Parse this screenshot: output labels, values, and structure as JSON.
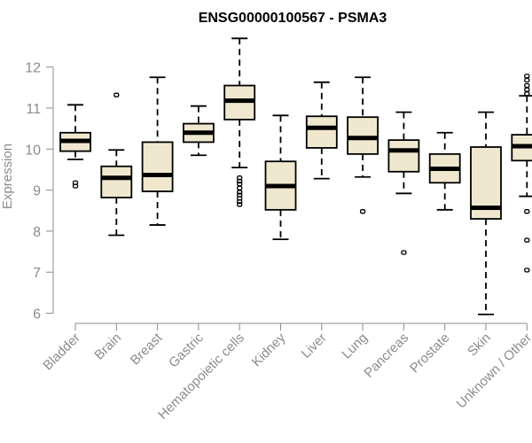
{
  "chart_data": {
    "type": "boxplot",
    "title": "ENSG00000100567 - PSMA3",
    "xlabel": "",
    "ylabel": "Expression",
    "ylim": [
      6,
      12.5
    ],
    "yticks": [
      6,
      7,
      8,
      9,
      10,
      11,
      12
    ],
    "grid": false,
    "box_color": "#efe8cf",
    "categories": [
      "Bladder",
      "Brain",
      "Breast",
      "Gastric",
      "Hematopoietic cells",
      "Kidney",
      "Liver",
      "Lung",
      "Pancreas",
      "Prostate",
      "Skin",
      "Unknown / Other"
    ],
    "boxes": [
      {
        "label": "Bladder",
        "min": 9.75,
        "q1": 9.95,
        "median": 10.2,
        "q3": 10.4,
        "max": 11.08,
        "outliers": [
          9.1,
          9.18
        ]
      },
      {
        "label": "Brain",
        "min": 7.9,
        "q1": 8.82,
        "median": 9.3,
        "q3": 9.58,
        "max": 9.98,
        "outliers": [
          11.32
        ]
      },
      {
        "label": "Breast",
        "min": 8.15,
        "q1": 8.97,
        "median": 9.37,
        "q3": 10.17,
        "max": 11.75,
        "outliers": []
      },
      {
        "label": "Gastric",
        "min": 9.85,
        "q1": 10.17,
        "median": 10.4,
        "q3": 10.62,
        "max": 11.05,
        "outliers": []
      },
      {
        "label": "Hematopoietic cells",
        "min": 9.55,
        "q1": 10.72,
        "median": 11.18,
        "q3": 11.55,
        "max": 12.7,
        "outliers": [
          9.3,
          9.22,
          9.15,
          9.05,
          8.95,
          8.88,
          8.8,
          8.72,
          8.65
        ]
      },
      {
        "label": "Kidney",
        "min": 7.8,
        "q1": 8.52,
        "median": 9.1,
        "q3": 9.7,
        "max": 10.82,
        "outliers": []
      },
      {
        "label": "Liver",
        "min": 9.28,
        "q1": 10.03,
        "median": 10.52,
        "q3": 10.8,
        "max": 11.63,
        "outliers": []
      },
      {
        "label": "Lung",
        "min": 9.32,
        "q1": 9.88,
        "median": 10.27,
        "q3": 10.78,
        "max": 11.75,
        "outliers": [
          8.48
        ]
      },
      {
        "label": "Pancreas",
        "min": 8.92,
        "q1": 9.45,
        "median": 9.97,
        "q3": 10.22,
        "max": 10.9,
        "outliers": [
          7.48
        ]
      },
      {
        "label": "Prostate",
        "min": 8.52,
        "q1": 9.18,
        "median": 9.52,
        "q3": 9.88,
        "max": 10.4,
        "outliers": []
      },
      {
        "label": "Skin",
        "min": 5.97,
        "q1": 8.3,
        "median": 8.57,
        "q3": 10.05,
        "max": 10.9,
        "outliers": []
      },
      {
        "label": "Unknown / Other",
        "min": 8.85,
        "q1": 9.72,
        "median": 10.07,
        "q3": 10.35,
        "max": 11.3,
        "outliers": [
          11.78,
          11.68,
          11.55,
          11.45,
          11.35,
          8.48,
          7.78,
          7.05
        ]
      }
    ]
  }
}
